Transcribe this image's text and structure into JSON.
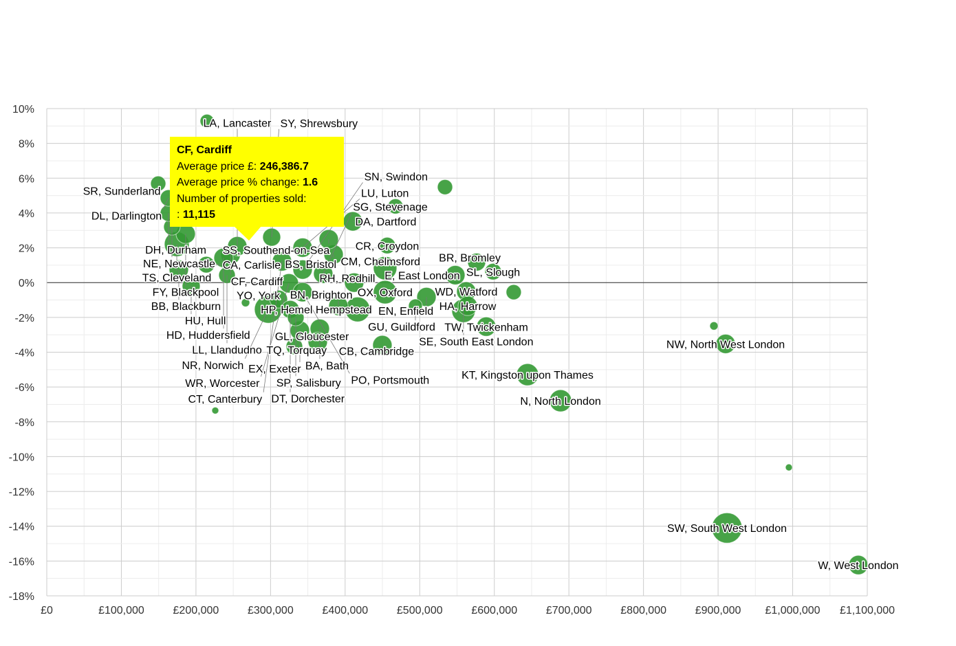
{
  "chart_data": {
    "type": "bubble",
    "title": "",
    "xlabel": "",
    "ylabel": "",
    "xlim": [
      0,
      1100000
    ],
    "ylim": [
      -18,
      10
    ],
    "x_ticks": [
      "£0",
      "£100,000",
      "£200,000",
      "£300,000",
      "£400,000",
      "£500,000",
      "£600,000",
      "£700,000",
      "£800,000",
      "£900,000",
      "£1,000,000",
      "£1,100,000"
    ],
    "y_ticks": [
      "10%",
      "8%",
      "6%",
      "4%",
      "2%",
      "0%",
      "-2%",
      "-4%",
      "-6%",
      "-8%",
      "-10%",
      "-12%",
      "-14%",
      "-16%",
      "-18%"
    ],
    "grid": true,
    "bubble_color": "#339933",
    "x_field": "Average price £",
    "y_field": "Average price % change",
    "z_field": "Number of properties sold",
    "points": [
      {
        "label": "",
        "x": 214800,
        "y": 9.28,
        "z": 5580
      },
      {
        "label": "SR, Sunderland",
        "x": 149400,
        "y": 5.69,
        "z": 6750
      },
      {
        "label": "",
        "x": 533900,
        "y": 5.49,
        "z": 6750
      },
      {
        "label": "",
        "x": 467500,
        "y": 4.38,
        "z": 6750
      },
      {
        "label": "DA, Dartford",
        "x": 410300,
        "y": 3.52,
        "z": 10930
      },
      {
        "label": "CR, Croydon",
        "x": 456400,
        "y": 2.13,
        "z": 8030
      },
      {
        "label": "TS, Cleveland",
        "x": 174300,
        "y": 2.21,
        "z": 18070
      },
      {
        "label": "HU, Hull",
        "x": 193600,
        "y": -0.2,
        "z": 9430
      },
      {
        "label": "BB, Blackburn",
        "x": 177000,
        "y": 0.75,
        "z": 10930
      },
      {
        "label": "NR, Norwich",
        "x": 296900,
        "y": -1.54,
        "z": 22300
      },
      {
        "label": "TQ, Torquay",
        "x": 331900,
        "y": -3.67,
        "z": 8030
      },
      {
        "label": "CB, Cambridge",
        "x": 449900,
        "y": -3.59,
        "z": 10930
      },
      {
        "label": "BA, Bath",
        "x": 366000,
        "y": -2.65,
        "z": 10930
      },
      {
        "label": "EX, Exeter",
        "x": 339300,
        "y": -2.76,
        "z": 10930
      },
      {
        "label": "GL, Gloucester",
        "x": 363300,
        "y": -3.4,
        "z": 10930
      },
      {
        "label": "HP, Hemel Hempstead",
        "x": 416700,
        "y": -1.54,
        "z": 18070
      },
      {
        "label": "BR, Bromley",
        "x": 576300,
        "y": 1.18,
        "z": 9430
      },
      {
        "label": "SL, Slough",
        "x": 598400,
        "y": 0.63,
        "z": 8030
      },
      {
        "label": "E, East London",
        "x": 547700,
        "y": 0.43,
        "z": 10930
      },
      {
        "label": "WD, Watford",
        "x": 562400,
        "y": -0.51,
        "z": 10930
      },
      {
        "label": "",
        "x": 626000,
        "y": -0.55,
        "z": 6750
      },
      {
        "label": "TW, Twickenham",
        "x": 589200,
        "y": -2.53,
        "z": 10930
      },
      {
        "label": "HA, Harrow",
        "x": 564300,
        "y": -1.34,
        "z": 10930
      },
      {
        "label": "SE, South East London",
        "x": 558700,
        "y": -1.62,
        "z": 16120
      },
      {
        "label": "EN, Enfield",
        "x": 509000,
        "y": -0.83,
        "z": 10930
      },
      {
        "label": "GU, Guildford",
        "x": 494200,
        "y": -1.34,
        "z": 5580
      },
      {
        "label": "KT, Kingston upon Thames",
        "x": 644500,
        "y": -5.29,
        "z": 14280
      },
      {
        "label": "N, North London",
        "x": 688800,
        "y": -6.79,
        "z": 14280
      },
      {
        "label": "",
        "x": 894400,
        "y": -2.49,
        "z": 2010
      },
      {
        "label": "NW, North West London",
        "x": 910100,
        "y": -3.52,
        "z": 10930
      },
      {
        "label": "",
        "x": 994900,
        "y": -10.62,
        "z": 1395
      },
      {
        "label": "SW, South West London",
        "x": 911900,
        "y": -14.1,
        "z": 27000
      },
      {
        "label": "W, West London",
        "x": 1088000,
        "y": -16.23,
        "z": 10930
      },
      {
        "label": "",
        "x": 225900,
        "y": -7.35,
        "z": 1395
      },
      {
        "label": "",
        "x": 266500,
        "y": -1.15,
        "z": 2010
      },
      {
        "label": "CM, Chelmsford",
        "x": 453600,
        "y": 0.83,
        "z": 16120
      },
      {
        "label": "OX, Oxford",
        "x": 453600,
        "y": -0.55,
        "z": 16120
      },
      {
        "label": "RH, Redhill",
        "x": 412100,
        "y": 0.0,
        "z": 10930
      },
      {
        "label": "SG, Stevenage",
        "x": 370600,
        "y": 0.51,
        "z": 10930
      },
      {
        "label": "SN, Swindon",
        "x": 343000,
        "y": 0.75,
        "z": 10930
      },
      {
        "label": "WR, Worcester",
        "x": 324600,
        "y": -0.04,
        "z": 10930
      },
      {
        "label": "PO, Portsmouth",
        "x": 343000,
        "y": -0.55,
        "z": 10930
      },
      {
        "label": "YO, York",
        "x": 310700,
        "y": -0.95,
        "z": 9430
      },
      {
        "label": "DT, Dorchester",
        "x": 326400,
        "y": -1.54,
        "z": 9430
      },
      {
        "label": "SP, Salisbury",
        "x": 333800,
        "y": -2.01,
        "z": 8030
      },
      {
        "label": "BN, Brighton",
        "x": 391000,
        "y": -1.34,
        "z": 10930
      },
      {
        "label": "BS, Bristol",
        "x": 384500,
        "y": 1.62,
        "z": 10930
      },
      {
        "label": "LU, Luton",
        "x": 343000,
        "y": 2.01,
        "z": 10930
      },
      {
        "label": "SS, Southend-on-Sea",
        "x": 378000,
        "y": 2.49,
        "z": 10930
      },
      {
        "label": "SY, Shrewsbury",
        "x": 301500,
        "y": 2.61,
        "z": 9430
      },
      {
        "label": "CF, Cardiff",
        "x": 246386.7,
        "y": 1.6,
        "z": 11115
      },
      {
        "label": "LA, Lancaster",
        "x": 255400,
        "y": 2.09,
        "z": 10930
      },
      {
        "label": "HD, Huddersfield",
        "x": 237000,
        "y": 1.42,
        "z": 10930
      },
      {
        "label": "CT, Canterbury",
        "x": 315300,
        "y": 1.22,
        "z": 10930
      },
      {
        "label": "CA, Carlisle",
        "x": 213900,
        "y": 1.03,
        "z": 8030
      },
      {
        "label": "LL, Llandudno",
        "x": 241600,
        "y": 0.43,
        "z": 8030
      },
      {
        "label": "FY, Blackpool",
        "x": 186200,
        "y": 2.8,
        "z": 10930
      },
      {
        "label": "NE, Newcastle",
        "x": 167800,
        "y": 3.2,
        "z": 8030
      },
      {
        "label": "DH, Durham",
        "x": 163200,
        "y": 3.99,
        "z": 8030
      },
      {
        "label": "DL, Darlington",
        "x": 163200,
        "y": 4.86,
        "z": 8030
      }
    ]
  },
  "tooltip": {
    "title": "CF, Cardiff",
    "price_label": "Average price £:",
    "price_value": "246,386.7",
    "change_label": "Average price % change:",
    "change_value": "1.6",
    "sold_label": "Number of properties sold:",
    "sold_prefix": ":",
    "sold_value": "11,115",
    "background": "#ffff00"
  }
}
